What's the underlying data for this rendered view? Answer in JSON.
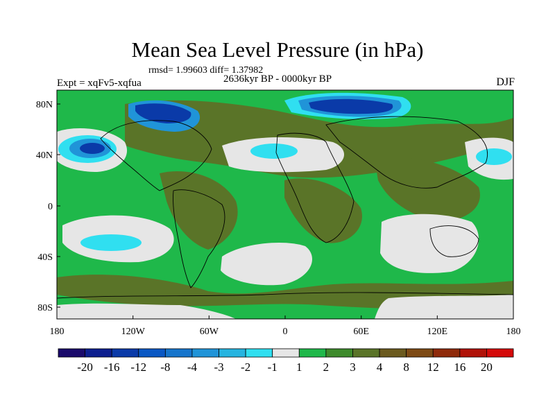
{
  "title": "Mean Sea Level Pressure (in hPa)",
  "stats": "rmsd= 1.99603 diff= 1.37982",
  "experiment": "Expt = xqFv5-xqfua",
  "period": "2636kyr BP - 0000kyr BP",
  "season": "DJF",
  "lat_ticks": [
    "80N",
    "40N",
    "0",
    "40S",
    "80S"
  ],
  "lon_ticks": [
    "180",
    "120W",
    "60W",
    "0",
    "60E",
    "120E",
    "180"
  ],
  "colorbar": {
    "colors": [
      "#1a0a6b",
      "#0d1f8f",
      "#0a3aa8",
      "#0a58c4",
      "#1675cc",
      "#2094d8",
      "#26b4e0",
      "#30dff0",
      "#e6e6e6",
      "#1fb84a",
      "#3d8a2b",
      "#5a7428",
      "#6b5a1e",
      "#7d4a14",
      "#8f2a0a",
      "#b01208",
      "#d40a0a"
    ],
    "labels": [
      "-20",
      "-16",
      "-12",
      "-8",
      "-4",
      "-3",
      "-2",
      "-1",
      "1",
      "2",
      "3",
      "4",
      "8",
      "12",
      "16",
      "20"
    ]
  },
  "fields": {
    "background": "#1fb84a",
    "near_zero": "#e6e6e6",
    "weak_positive": "#5a7428",
    "weak_negative": "#30dff0",
    "moderate_negative": "#2094d8",
    "strong_negative": "#0a3aa8",
    "coastline": "#000000"
  }
}
